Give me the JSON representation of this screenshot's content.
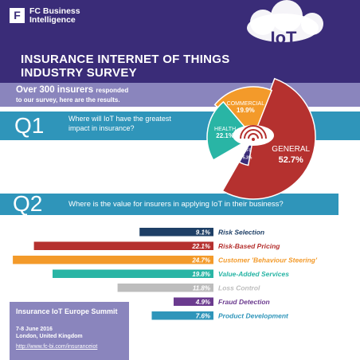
{
  "brand": {
    "logo_letter": "F",
    "logo_line1": "FC Business",
    "logo_line2": "Intelligence"
  },
  "title": {
    "line1": "INSURANCE INTERNET OF THINGS",
    "line2": "INDUSTRY SURVEY"
  },
  "intro": {
    "bold": "Over 300 insurers",
    "small": "responded",
    "line2": "to our survey, here are the results."
  },
  "cloud_text": "IoT",
  "q1": {
    "label": "Q1",
    "text_line1": "Where will IoT have the greatest",
    "text_line2": "impact in insurance?"
  },
  "q2": {
    "label": "Q2",
    "text": "Where is the value for insurers in applying IoT in their business?"
  },
  "event": {
    "title": "Insurance IoT Europe Summit",
    "date": "7-8 June 2016",
    "location": "London, United Kingdom",
    "url": "http://www.fc-bi.com/insuranceiot"
  },
  "colors": {
    "header": "#3a2c78",
    "band": "#8a85bd",
    "question_band": "#2f95ba",
    "general": "#b5312f",
    "commercial": "#f39a2a",
    "health": "#29b5a5",
    "life": "#3a2c78"
  },
  "icons": [
    "shopping-cart-icon",
    "medical-cross-icon",
    "heart-icon",
    "wifi-icon",
    "cloud-icon"
  ],
  "chart_data": [
    {
      "type": "pie",
      "question": "Where will IoT have the greatest impact in insurance?",
      "slices": [
        {
          "name": "GENERAL",
          "value": 52.7,
          "label": "52.7%",
          "color": "#b5312f"
        },
        {
          "name": "COMMERCIAL",
          "value": 19.9,
          "label": "19.9%",
          "color": "#f39a2a"
        },
        {
          "name": "HEALTH",
          "value": 22.1,
          "label": "22.1%",
          "color": "#29b5a5"
        },
        {
          "name": "LIFE",
          "value": 5.3,
          "label": "5.3%",
          "color": "#3a2c78"
        }
      ]
    },
    {
      "type": "bar",
      "orientation": "horizontal",
      "question": "Where is the value for insurers in applying IoT in their business?",
      "categories": [
        "Risk Selection",
        "Risk-Based Pricing",
        "Customer 'Behaviour Steering'",
        "Value-Added Services",
        "Loss Control",
        "Fraud Detection",
        "Product Development"
      ],
      "values": [
        9.1,
        22.1,
        24.7,
        19.8,
        11.8,
        4.9,
        7.6
      ],
      "labels": [
        "9.1%",
        "22.1%",
        "24.7%",
        "19.8%",
        "11.8%",
        "4.9%",
        "7.6%"
      ],
      "colors": [
        "#1e3f66",
        "#b5312f",
        "#f39a2a",
        "#29b5a5",
        "#bdbdbd",
        "#6b3b8f",
        "#2f95ba"
      ]
    }
  ]
}
